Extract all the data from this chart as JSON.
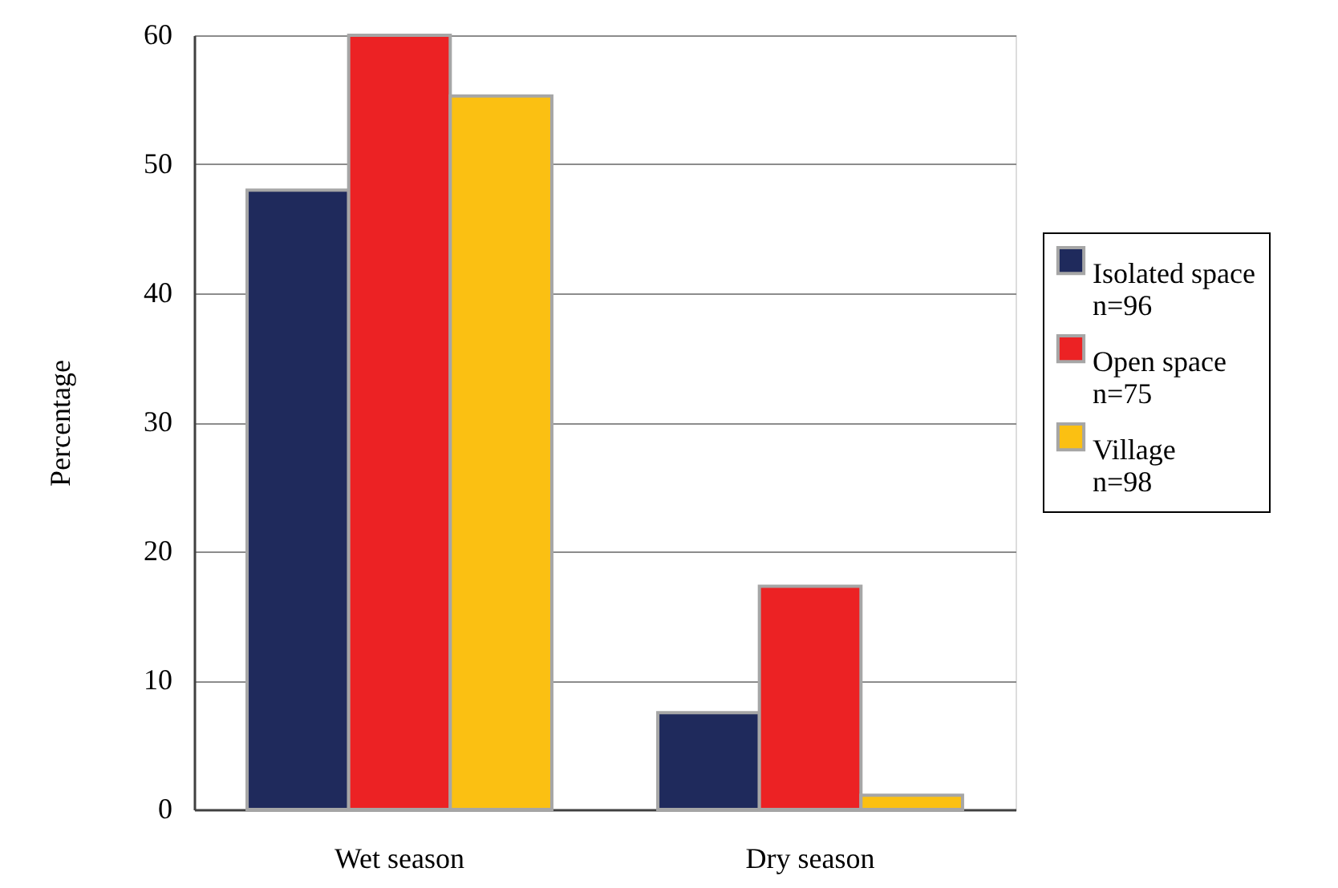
{
  "chart_data": {
    "type": "bar",
    "ylabel": "Percentage",
    "categories": [
      "Wet season",
      "Dry season"
    ],
    "series": [
      {
        "name": "Isolated space\nn=96",
        "color": "#1f2a5c",
        "values": [
          48.0,
          7.5
        ]
      },
      {
        "name": "Open space\nn=75",
        "color": "#ec2224",
        "values": [
          60.0,
          17.3
        ]
      },
      {
        "name": "Village\nn=98",
        "color": "#fbc012",
        "values": [
          55.3,
          1.1
        ]
      }
    ],
    "ylim": [
      0,
      60
    ],
    "yticks": [
      0,
      10,
      20,
      30,
      40,
      50,
      60
    ],
    "grid": "y",
    "legend": "right"
  }
}
